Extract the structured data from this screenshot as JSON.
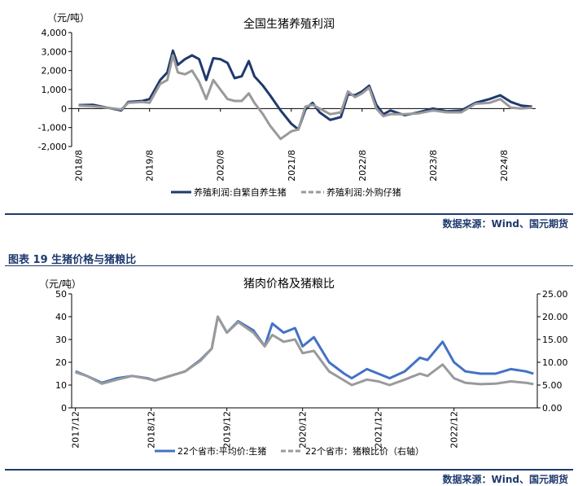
{
  "source_text": "数据来源：Wind、国元期货",
  "figure2_caption": "图表 19  生猪价格与猪粮比",
  "chart_data": [
    {
      "type": "line",
      "title": "全国生猪养殖利润",
      "unit": "（元/吨）",
      "ylim": [
        -2000,
        4000
      ],
      "y_ticks": [
        "4,000",
        "3,000",
        "2,000",
        "1,000",
        "0",
        "-1,000",
        "-2,000"
      ],
      "x_ticks": [
        "2018/8",
        "2019/8",
        "2020/8",
        "2021/8",
        "2022/8",
        "2023/8",
        "2024/8"
      ],
      "grid": false,
      "legend_position": "bottom",
      "series": [
        {
          "name": "养殖利润:自繁自养生猪",
          "color": "#1f3a6e",
          "points": [
            [
              2018.6,
              180
            ],
            [
              2018.8,
              200
            ],
            [
              2019.0,
              50
            ],
            [
              2019.2,
              -100
            ],
            [
              2019.3,
              350
            ],
            [
              2019.5,
              400
            ],
            [
              2019.6,
              500
            ],
            [
              2019.75,
              1500
            ],
            [
              2019.85,
              1900
            ],
            [
              2019.93,
              3050
            ],
            [
              2020.0,
              2300
            ],
            [
              2020.1,
              2600
            ],
            [
              2020.2,
              2800
            ],
            [
              2020.3,
              2600
            ],
            [
              2020.4,
              1500
            ],
            [
              2020.5,
              2650
            ],
            [
              2020.6,
              2600
            ],
            [
              2020.7,
              2400
            ],
            [
              2020.8,
              1600
            ],
            [
              2020.9,
              1700
            ],
            [
              2021.0,
              2500
            ],
            [
              2021.08,
              1700
            ],
            [
              2021.2,
              1200
            ],
            [
              2021.3,
              700
            ],
            [
              2021.45,
              -100
            ],
            [
              2021.6,
              -800
            ],
            [
              2021.7,
              -1100
            ],
            [
              2021.8,
              -50
            ],
            [
              2021.9,
              300
            ],
            [
              2022.0,
              -200
            ],
            [
              2022.15,
              -600
            ],
            [
              2022.3,
              -450
            ],
            [
              2022.4,
              750
            ],
            [
              2022.5,
              700
            ],
            [
              2022.6,
              900
            ],
            [
              2022.7,
              1200
            ],
            [
              2022.8,
              200
            ],
            [
              2022.9,
              -300
            ],
            [
              2023.0,
              -100
            ],
            [
              2023.2,
              -350
            ],
            [
              2023.4,
              -200
            ],
            [
              2023.6,
              0
            ],
            [
              2023.8,
              -150
            ],
            [
              2024.0,
              -100
            ],
            [
              2024.2,
              300
            ],
            [
              2024.4,
              500
            ],
            [
              2024.55,
              700
            ],
            [
              2024.7,
              350
            ],
            [
              2024.85,
              150
            ],
            [
              2025.0,
              100
            ]
          ]
        },
        {
          "name": "养殖利润:外购仔猪",
          "color": "#9a9a9a",
          "dashed": true,
          "points": [
            [
              2018.6,
              150
            ],
            [
              2018.8,
              120
            ],
            [
              2019.0,
              50
            ],
            [
              2019.2,
              -50
            ],
            [
              2019.3,
              300
            ],
            [
              2019.5,
              350
            ],
            [
              2019.6,
              300
            ],
            [
              2019.75,
              1300
            ],
            [
              2019.85,
              1500
            ],
            [
              2019.93,
              2800
            ],
            [
              2020.0,
              1900
            ],
            [
              2020.1,
              1800
            ],
            [
              2020.2,
              2000
            ],
            [
              2020.3,
              1400
            ],
            [
              2020.4,
              500
            ],
            [
              2020.5,
              1500
            ],
            [
              2020.6,
              1000
            ],
            [
              2020.7,
              500
            ],
            [
              2020.8,
              400
            ],
            [
              2020.9,
              400
            ],
            [
              2021.0,
              800
            ],
            [
              2021.08,
              300
            ],
            [
              2021.2,
              -300
            ],
            [
              2021.3,
              -900
            ],
            [
              2021.45,
              -1600
            ],
            [
              2021.6,
              -1200
            ],
            [
              2021.7,
              -1100
            ],
            [
              2021.8,
              100
            ],
            [
              2021.9,
              200
            ],
            [
              2022.0,
              0
            ],
            [
              2022.15,
              -300
            ],
            [
              2022.3,
              -200
            ],
            [
              2022.4,
              900
            ],
            [
              2022.5,
              600
            ],
            [
              2022.6,
              800
            ],
            [
              2022.7,
              1100
            ],
            [
              2022.8,
              0
            ],
            [
              2022.9,
              -400
            ],
            [
              2023.0,
              -300
            ],
            [
              2023.2,
              -300
            ],
            [
              2023.4,
              -250
            ],
            [
              2023.6,
              -100
            ],
            [
              2023.8,
              -200
            ],
            [
              2024.0,
              -200
            ],
            [
              2024.2,
              250
            ],
            [
              2024.4,
              300
            ],
            [
              2024.55,
              500
            ],
            [
              2024.7,
              50
            ],
            [
              2024.85,
              0
            ],
            [
              2025.0,
              50
            ]
          ]
        }
      ]
    },
    {
      "type": "line",
      "title": "猪肉价格及猪粮比",
      "unit": "（元/吨）",
      "ylim": [
        0,
        50
      ],
      "y2lim": [
        0,
        25
      ],
      "y_ticks": [
        "50",
        "40",
        "30",
        "20",
        "10",
        "0"
      ],
      "y2_ticks": [
        "25.00",
        "20.00",
        "15.00",
        "10.00",
        "5.00",
        "0.00"
      ],
      "x_ticks": [
        "2017/12",
        "2018/12",
        "2019/12",
        "2020/12",
        "2021/12",
        "2022/12"
      ],
      "grid": false,
      "legend_position": "bottom",
      "series": [
        {
          "name": "22个省市:平均价:生猪",
          "color": "#4472c4",
          "axis": "left",
          "points": [
            [
              2017.95,
              16
            ],
            [
              2018.1,
              14
            ],
            [
              2018.3,
              11
            ],
            [
              2018.5,
              13
            ],
            [
              2018.7,
              14
            ],
            [
              2018.9,
              13
            ],
            [
              2019.0,
              12
            ],
            [
              2019.2,
              14
            ],
            [
              2019.4,
              16
            ],
            [
              2019.6,
              21
            ],
            [
              2019.75,
              26
            ],
            [
              2019.83,
              40
            ],
            [
              2019.95,
              33
            ],
            [
              2020.1,
              38
            ],
            [
              2020.3,
              34
            ],
            [
              2020.45,
              27
            ],
            [
              2020.55,
              37
            ],
            [
              2020.7,
              33
            ],
            [
              2020.85,
              35
            ],
            [
              2020.95,
              27
            ],
            [
              2021.1,
              31
            ],
            [
              2021.3,
              20
            ],
            [
              2021.5,
              15
            ],
            [
              2021.6,
              13
            ],
            [
              2021.8,
              17
            ],
            [
              2021.95,
              15
            ],
            [
              2022.1,
              13
            ],
            [
              2022.3,
              16
            ],
            [
              2022.5,
              22
            ],
            [
              2022.6,
              21
            ],
            [
              2022.8,
              29
            ],
            [
              2022.95,
              20
            ],
            [
              2023.1,
              16
            ],
            [
              2023.3,
              15
            ],
            [
              2023.5,
              15
            ],
            [
              2023.7,
              17
            ],
            [
              2023.9,
              16
            ],
            [
              2024.0,
              15
            ]
          ]
        },
        {
          "name": "22个省市：猪粮比价（右轴）",
          "color": "#9a9a9a",
          "dashed": true,
          "axis": "right",
          "points": [
            [
              2017.95,
              7.8
            ],
            [
              2018.1,
              7
            ],
            [
              2018.3,
              5.3
            ],
            [
              2018.5,
              6.2
            ],
            [
              2018.7,
              7
            ],
            [
              2018.9,
              6.4
            ],
            [
              2019.0,
              6
            ],
            [
              2019.2,
              7
            ],
            [
              2019.4,
              8
            ],
            [
              2019.6,
              10.3
            ],
            [
              2019.75,
              13
            ],
            [
              2019.83,
              20
            ],
            [
              2019.95,
              16.5
            ],
            [
              2020.1,
              18.8
            ],
            [
              2020.3,
              16.5
            ],
            [
              2020.45,
              13.5
            ],
            [
              2020.55,
              16
            ],
            [
              2020.7,
              14.5
            ],
            [
              2020.85,
              15
            ],
            [
              2020.95,
              12
            ],
            [
              2021.1,
              12.5
            ],
            [
              2021.3,
              8
            ],
            [
              2021.5,
              6
            ],
            [
              2021.6,
              5
            ],
            [
              2021.8,
              6.2
            ],
            [
              2021.95,
              5.8
            ],
            [
              2022.1,
              5
            ],
            [
              2022.3,
              6.2
            ],
            [
              2022.5,
              7.5
            ],
            [
              2022.6,
              7
            ],
            [
              2022.8,
              9.5
            ],
            [
              2022.95,
              6.5
            ],
            [
              2023.1,
              5.5
            ],
            [
              2023.3,
              5.2
            ],
            [
              2023.5,
              5.3
            ],
            [
              2023.7,
              5.8
            ],
            [
              2023.9,
              5.5
            ],
            [
              2024.0,
              5.2
            ]
          ]
        }
      ]
    }
  ]
}
